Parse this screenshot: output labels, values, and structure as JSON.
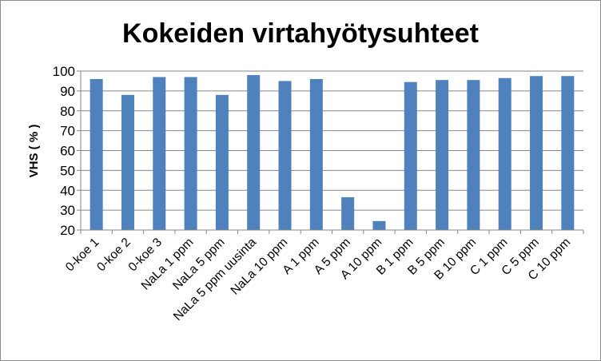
{
  "chart_data": {
    "type": "bar",
    "title": "Kokeiden virtahyötysuhteet",
    "xlabel": "",
    "ylabel": "VHS ( % )",
    "ylim": [
      20,
      100
    ],
    "yticks": [
      20,
      30,
      40,
      50,
      60,
      70,
      80,
      90,
      100
    ],
    "grid": true,
    "legend": "none",
    "bar_color": "#4F81BD",
    "categories": [
      "0-koe 1",
      "0-koe 2",
      "0-koe 3",
      "NaLa 1 ppm",
      "NaLa 5 ppm",
      "NaLa 5 ppm uusinta",
      "NaLa 10 ppm",
      "A 1 ppm",
      "A 5 ppm",
      "A 10 ppm",
      "B 1 ppm",
      "B 5 ppm",
      "B 10 ppm",
      "C 1 ppm",
      "C 5 ppm",
      "C 10 ppm"
    ],
    "values": [
      96,
      88,
      97,
      97,
      88,
      98,
      95,
      96,
      36.5,
      24.5,
      94.5,
      95.5,
      95.5,
      96.5,
      97.5,
      97.5
    ]
  }
}
